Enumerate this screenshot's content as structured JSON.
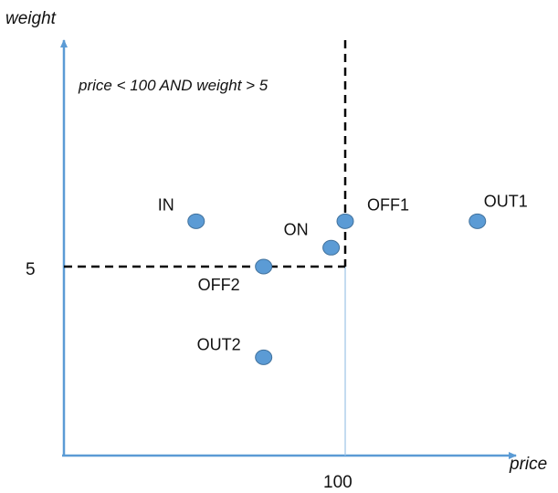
{
  "axes": {
    "x_label": "price",
    "y_label": "weight",
    "x_tick": "100",
    "y_tick": "5",
    "x_tick_value": 100,
    "y_tick_value": 5
  },
  "condition_label": "price < 100 AND weight > 5",
  "colors": {
    "axis": "#5b9bd5",
    "point_fill": "#5b9bd5",
    "point_stroke": "#41719c",
    "boundary": "#000000"
  },
  "chart_data": {
    "type": "scatter",
    "boundary": {
      "price": 100,
      "weight": 5,
      "style": "dashed"
    },
    "points": [
      {
        "label": "IN",
        "price": 47,
        "weight": 6.2
      },
      {
        "label": "OFF1",
        "price": 100,
        "weight": 6.2
      },
      {
        "label": "OUT1",
        "price": 147,
        "weight": 6.2
      },
      {
        "label": "ON",
        "price": 95,
        "weight": 5.5
      },
      {
        "label": "OFF2",
        "price": 71,
        "weight": 5.0
      },
      {
        "label": "OUT2",
        "price": 71,
        "weight": 2.6
      }
    ]
  }
}
